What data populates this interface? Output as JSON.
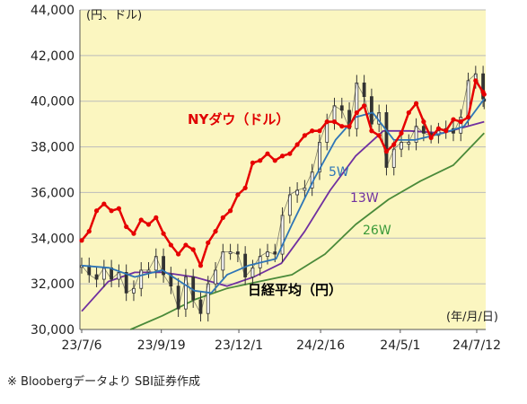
{
  "chart_data": {
    "type": "line",
    "y_unit_label": "(円、ドル)",
    "x_unit_label": "(年/月/日)",
    "footnote": "※ Bloobergデータより SBI証券作成",
    "ylim": [
      30000,
      44000
    ],
    "y_ticks": [
      30000,
      32000,
      34000,
      36000,
      38000,
      40000,
      42000,
      44000
    ],
    "y_tick_labels": [
      "30,000",
      "32,000",
      "34,000",
      "36,000",
      "38,000",
      "40,000",
      "42,000",
      "44,000"
    ],
    "x_ticks": [
      "2023-07-06",
      "2023-09-19",
      "2023-12-01",
      "2024-02-16",
      "2024-05-01",
      "2024-07-12"
    ],
    "x_tick_labels": [
      "23/7/6",
      "23/9/19",
      "23/12/1",
      "24/2/16",
      "24/5/1",
      "24/7/12"
    ],
    "grid": "horizontal",
    "plot_background": "#fbf6c0",
    "annotations": [
      {
        "text": "NYダウ（ドル）",
        "color": "#e00000",
        "series": "nydow"
      },
      {
        "text": "日経平均（円）",
        "color": "#000000",
        "series": "nikkei"
      },
      {
        "text": "5W",
        "color": "#2e75b6",
        "series": "ma5w"
      },
      {
        "text": "13W",
        "color": "#7030a0",
        "series": "ma13w"
      },
      {
        "text": "26W",
        "color": "#3a9a3a",
        "series": "ma26w"
      }
    ],
    "series": [
      {
        "key": "nydow",
        "color": "#e60000",
        "style": "line-markers",
        "points": [
          [
            "2023-07-06",
            33900
          ],
          [
            "2023-07-13",
            34300
          ],
          [
            "2023-07-20",
            35200
          ],
          [
            "2023-07-27",
            35500
          ],
          [
            "2023-08-03",
            35200
          ],
          [
            "2023-08-10",
            35300
          ],
          [
            "2023-08-17",
            34500
          ],
          [
            "2023-08-24",
            34200
          ],
          [
            "2023-08-31",
            34800
          ],
          [
            "2023-09-07",
            34600
          ],
          [
            "2023-09-14",
            34900
          ],
          [
            "2023-09-21",
            34200
          ],
          [
            "2023-09-28",
            33700
          ],
          [
            "2023-10-05",
            33300
          ],
          [
            "2023-10-12",
            33700
          ],
          [
            "2023-10-19",
            33500
          ],
          [
            "2023-10-26",
            32800
          ],
          [
            "2023-11-02",
            33800
          ],
          [
            "2023-11-09",
            34300
          ],
          [
            "2023-11-16",
            34900
          ],
          [
            "2023-11-23",
            35200
          ],
          [
            "2023-11-30",
            35900
          ],
          [
            "2023-12-07",
            36200
          ],
          [
            "2023-12-14",
            37300
          ],
          [
            "2023-12-21",
            37400
          ],
          [
            "2023-12-28",
            37700
          ],
          [
            "2024-01-04",
            37400
          ],
          [
            "2024-01-11",
            37600
          ],
          [
            "2024-01-18",
            37700
          ],
          [
            "2024-01-25",
            38100
          ],
          [
            "2024-02-01",
            38500
          ],
          [
            "2024-02-08",
            38700
          ],
          [
            "2024-02-15",
            38700
          ],
          [
            "2024-02-22",
            39100
          ],
          [
            "2024-02-29",
            39100
          ],
          [
            "2024-03-07",
            38900
          ],
          [
            "2024-03-14",
            38900
          ],
          [
            "2024-03-21",
            39500
          ],
          [
            "2024-03-28",
            39800
          ],
          [
            "2024-04-04",
            38700
          ],
          [
            "2024-04-11",
            38500
          ],
          [
            "2024-04-18",
            37800
          ],
          [
            "2024-04-25",
            38100
          ],
          [
            "2024-05-02",
            38600
          ],
          [
            "2024-05-09",
            39500
          ],
          [
            "2024-05-16",
            39900
          ],
          [
            "2024-05-23",
            39100
          ],
          [
            "2024-05-30",
            38400
          ],
          [
            "2024-06-06",
            38800
          ],
          [
            "2024-06-13",
            38700
          ],
          [
            "2024-06-20",
            39200
          ],
          [
            "2024-06-27",
            39100
          ],
          [
            "2024-07-04",
            39300
          ],
          [
            "2024-07-11",
            40900
          ],
          [
            "2024-07-18",
            40400
          ],
          [
            "2024-07-19",
            40300
          ]
        ]
      },
      {
        "key": "nikkei",
        "color": "#222222",
        "style": "candles",
        "points": [
          [
            "2023-07-06",
            32800
          ],
          [
            "2023-07-13",
            32400
          ],
          [
            "2023-07-20",
            32200
          ],
          [
            "2023-07-27",
            32700
          ],
          [
            "2023-08-03",
            32200
          ],
          [
            "2023-08-10",
            32500
          ],
          [
            "2023-08-17",
            31600
          ],
          [
            "2023-08-24",
            31800
          ],
          [
            "2023-08-31",
            32600
          ],
          [
            "2023-09-07",
            32600
          ],
          [
            "2023-09-14",
            33200
          ],
          [
            "2023-09-21",
            32400
          ],
          [
            "2023-09-28",
            31900
          ],
          [
            "2023-10-05",
            30900
          ],
          [
            "2023-10-12",
            32300
          ],
          [
            "2023-10-19",
            31300
          ],
          [
            "2023-10-26",
            30700
          ],
          [
            "2023-11-02",
            32000
          ],
          [
            "2023-11-09",
            32600
          ],
          [
            "2023-11-16",
            33400
          ],
          [
            "2023-11-23",
            33400
          ],
          [
            "2023-11-30",
            33300
          ],
          [
            "2023-12-07",
            32300
          ],
          [
            "2023-12-14",
            32700
          ],
          [
            "2023-12-21",
            33200
          ],
          [
            "2023-12-28",
            33400
          ],
          [
            "2024-01-04",
            33300
          ],
          [
            "2024-01-11",
            35000
          ],
          [
            "2024-01-18",
            35900
          ],
          [
            "2024-01-25",
            36100
          ],
          [
            "2024-02-01",
            36200
          ],
          [
            "2024-02-08",
            36900
          ],
          [
            "2024-02-15",
            38200
          ],
          [
            "2024-02-22",
            39100
          ],
          [
            "2024-02-29",
            39800
          ],
          [
            "2024-03-07",
            39600
          ],
          [
            "2024-03-14",
            38800
          ],
          [
            "2024-03-21",
            40800
          ],
          [
            "2024-03-28",
            40200
          ],
          [
            "2024-04-04",
            39000
          ],
          [
            "2024-04-11",
            39500
          ],
          [
            "2024-04-18",
            37100
          ],
          [
            "2024-04-25",
            37900
          ],
          [
            "2024-05-02",
            38200
          ],
          [
            "2024-05-09",
            38200
          ],
          [
            "2024-05-16",
            38900
          ],
          [
            "2024-05-23",
            38600
          ],
          [
            "2024-05-30",
            38500
          ],
          [
            "2024-06-06",
            38700
          ],
          [
            "2024-06-13",
            38800
          ],
          [
            "2024-06-20",
            38600
          ],
          [
            "2024-06-27",
            39300
          ],
          [
            "2024-07-04",
            40900
          ],
          [
            "2024-07-11",
            41200
          ],
          [
            "2024-07-18",
            40100
          ],
          [
            "2024-07-19",
            40000
          ]
        ]
      },
      {
        "key": "ma5w",
        "color": "#2e75b6",
        "style": "line",
        "points": [
          [
            "2023-07-06",
            32800
          ],
          [
            "2023-08-01",
            32700
          ],
          [
            "2023-08-25",
            32300
          ],
          [
            "2023-09-20",
            32600
          ],
          [
            "2023-10-20",
            31700
          ],
          [
            "2023-11-05",
            31600
          ],
          [
            "2023-11-20",
            32400
          ],
          [
            "2023-12-10",
            32800
          ],
          [
            "2024-01-05",
            33100
          ],
          [
            "2024-01-20",
            34600
          ],
          [
            "2024-02-10",
            36600
          ],
          [
            "2024-03-01",
            38300
          ],
          [
            "2024-03-20",
            39300
          ],
          [
            "2024-04-05",
            39500
          ],
          [
            "2024-04-25",
            38300
          ],
          [
            "2024-05-15",
            38300
          ],
          [
            "2024-06-10",
            38600
          ],
          [
            "2024-06-30",
            38900
          ],
          [
            "2024-07-19",
            40100
          ]
        ]
      },
      {
        "key": "ma13w",
        "color": "#7030a0",
        "style": "line",
        "points": [
          [
            "2023-07-06",
            30800
          ],
          [
            "2023-07-31",
            32100
          ],
          [
            "2023-08-25",
            32500
          ],
          [
            "2023-09-20",
            32500
          ],
          [
            "2023-10-20",
            32300
          ],
          [
            "2023-11-20",
            31900
          ],
          [
            "2023-12-15",
            32300
          ],
          [
            "2024-01-10",
            32900
          ],
          [
            "2024-02-01",
            34300
          ],
          [
            "2024-02-25",
            36100
          ],
          [
            "2024-03-20",
            37600
          ],
          [
            "2024-04-15",
            38700
          ],
          [
            "2024-05-10",
            38700
          ],
          [
            "2024-06-10",
            38600
          ],
          [
            "2024-07-19",
            39100
          ]
        ]
      },
      {
        "key": "ma26w",
        "color": "#4a8a3a",
        "style": "line",
        "points": [
          [
            "2023-08-21",
            30000
          ],
          [
            "2023-09-20",
            30600
          ],
          [
            "2023-10-20",
            31300
          ],
          [
            "2023-11-20",
            31800
          ],
          [
            "2023-12-20",
            32100
          ],
          [
            "2024-01-20",
            32400
          ],
          [
            "2024-02-20",
            33300
          ],
          [
            "2024-03-20",
            34600
          ],
          [
            "2024-04-20",
            35700
          ],
          [
            "2024-05-20",
            36500
          ],
          [
            "2024-06-20",
            37200
          ],
          [
            "2024-07-19",
            38600
          ]
        ]
      }
    ]
  }
}
